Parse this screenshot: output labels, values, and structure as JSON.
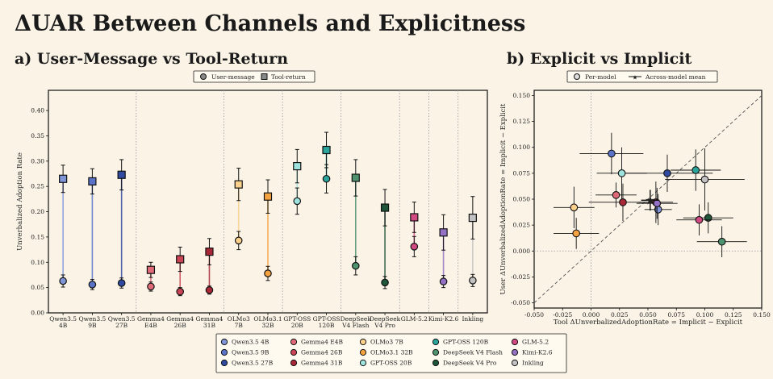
{
  "title": "ΔUAR Between Channels and Explicitness",
  "subtitles": {
    "a": "a) User-Message vs Tool-Return",
    "b": "b) Explicit vs Implicit"
  },
  "chart_data": [
    {
      "type": "scatter",
      "panel": "a",
      "ylabel": "Unverbalized Adoption Rate",
      "ylim": [
        0,
        0.44
      ],
      "yticks": [
        0.0,
        0.05,
        0.1,
        0.15,
        0.2,
        0.25,
        0.3,
        0.35,
        0.4
      ],
      "grid": false,
      "legend": {
        "position": "top-center",
        "entries": [
          "User-message",
          "Tool-return"
        ]
      },
      "groups_separated_by_dotted_lines": [
        [
          0,
          1,
          2
        ],
        [
          3,
          4,
          5
        ],
        [
          6,
          7
        ],
        [
          8,
          9
        ],
        [
          10,
          11
        ],
        [
          12
        ],
        [
          13
        ],
        [
          14
        ]
      ],
      "models": [
        {
          "label": [
            "Qwen3.5",
            "4B"
          ],
          "color": "#7f95d8",
          "user": 0.063,
          "user_err": 0.012,
          "tool": 0.265,
          "tool_err": 0.027
        },
        {
          "label": [
            "Qwen3.5",
            "9B"
          ],
          "color": "#5a73c9",
          "user": 0.056,
          "user_err": 0.01,
          "tool": 0.26,
          "tool_err": 0.025
        },
        {
          "label": [
            "Qwen3.5",
            "27B"
          ],
          "color": "#2f4aa0",
          "user": 0.059,
          "user_err": 0.01,
          "tool": 0.273,
          "tool_err": 0.03
        },
        {
          "label": [
            "Gemma4",
            "E4B"
          ],
          "color": "#e06b78",
          "user": 0.052,
          "user_err": 0.009,
          "tool": 0.085,
          "tool_err": 0.015
        },
        {
          "label": [
            "Gemma4",
            "26B"
          ],
          "color": "#c94455",
          "user": 0.042,
          "user_err": 0.008,
          "tool": 0.106,
          "tool_err": 0.024
        },
        {
          "label": [
            "Gemma4",
            "31B"
          ],
          "color": "#a82838",
          "user": 0.045,
          "user_err": 0.008,
          "tool": 0.121,
          "tool_err": 0.026
        },
        {
          "label": [
            "OLMo3",
            "7B"
          ],
          "color": "#fbd08c",
          "user": 0.143,
          "user_err": 0.018,
          "tool": 0.254,
          "tool_err": 0.032
        },
        {
          "label": [
            "OLMo3.1",
            "32B"
          ],
          "color": "#f4a340",
          "user": 0.078,
          "user_err": 0.014,
          "tool": 0.23,
          "tool_err": 0.033
        },
        {
          "label": [
            "GPT-OSS",
            "20B"
          ],
          "color": "#9fe3de",
          "user": 0.221,
          "user_err": 0.026,
          "tool": 0.29,
          "tool_err": 0.033
        },
        {
          "label": [
            "GPT-OSS",
            "120B"
          ],
          "color": "#2ba59c",
          "user": 0.265,
          "user_err": 0.028,
          "tool": 0.322,
          "tool_err": 0.035
        },
        {
          "label": [
            "DeepSeek",
            "V4 Flash"
          ],
          "color": "#4e9270",
          "user": 0.093,
          "user_err": 0.018,
          "tool": 0.267,
          "tool_err": 0.036
        },
        {
          "label": [
            "DeepSeek",
            "V4 Pro"
          ],
          "color": "#1f5538",
          "user": 0.06,
          "user_err": 0.012,
          "tool": 0.208,
          "tool_err": 0.036
        },
        {
          "label": [
            "GLM-5.2"
          ],
          "color": "#d24a82",
          "user": 0.131,
          "user_err": 0.02,
          "tool": 0.189,
          "tool_err": 0.03
        },
        {
          "label": [
            "Kimi-K2.6"
          ],
          "color": "#9471c4",
          "user": 0.062,
          "user_err": 0.012,
          "tool": 0.159,
          "tool_err": 0.035
        },
        {
          "label": [
            "Inkling"
          ],
          "color": "#c2c2c2",
          "user": 0.064,
          "user_err": 0.012,
          "tool": 0.188,
          "tool_err": 0.042
        }
      ]
    },
    {
      "type": "scatter",
      "panel": "b",
      "xlabel": "Tool ΔUnverbalizedAdoptionRate = Implicit − Explicit",
      "ylabel": "User ΔUnverbalizedAdoptionRate = Implicit − Explicit",
      "xlim": [
        -0.05,
        0.15
      ],
      "ylim": [
        -0.055,
        0.155
      ],
      "xticks": [
        -0.05,
        -0.025,
        0.0,
        0.025,
        0.05,
        0.075,
        0.1,
        0.125,
        0.15
      ],
      "yticks": [
        -0.05,
        -0.025,
        0.0,
        0.025,
        0.05,
        0.075,
        0.1,
        0.125,
        0.15
      ],
      "diagonal": "y = x (dashed)",
      "zero_lines": "dotted",
      "legend": {
        "position": "top-center",
        "entries": [
          "Per-model",
          "Across-model mean"
        ]
      },
      "points": [
        {
          "model": "Qwen3.5 4B",
          "x": 0.059,
          "y": 0.04,
          "xerr": 0.012,
          "yerr": 0.015
        },
        {
          "model": "Qwen3.5 9B",
          "x": 0.018,
          "y": 0.094,
          "xerr": 0.028,
          "yerr": 0.02
        },
        {
          "model": "Qwen3.5 27B",
          "x": 0.067,
          "y": 0.075,
          "xerr": 0.04,
          "yerr": 0.018
        },
        {
          "model": "Gemma4 E4B",
          "x": 0.022,
          "y": 0.054,
          "xerr": 0.018,
          "yerr": 0.012
        },
        {
          "model": "Gemma4 26B",
          "x": 0.057,
          "y": 0.047,
          "xerr": 0.015,
          "yerr": 0.02
        },
        {
          "model": "Gemma4 31B",
          "x": 0.028,
          "y": 0.047,
          "xerr": 0.03,
          "yerr": 0.018
        },
        {
          "model": "OLMo3 7B",
          "x": -0.015,
          "y": 0.042,
          "xerr": 0.018,
          "yerr": 0.02
        },
        {
          "model": "OLMo3.1 32B",
          "x": -0.013,
          "y": 0.017,
          "xerr": 0.02,
          "yerr": 0.015
        },
        {
          "model": "GPT-OSS 20B",
          "x": 0.027,
          "y": 0.075,
          "xerr": 0.022,
          "yerr": 0.025
        },
        {
          "model": "GPT-OSS 120B",
          "x": 0.092,
          "y": 0.078,
          "xerr": 0.022,
          "yerr": 0.02
        },
        {
          "model": "DeepSeek V4 Flash",
          "x": 0.115,
          "y": 0.009,
          "xerr": 0.022,
          "yerr": 0.015
        },
        {
          "model": "DeepSeek V4 Pro",
          "x": 0.103,
          "y": 0.032,
          "xerr": 0.022,
          "yerr": 0.015
        },
        {
          "model": "GLM-5.2",
          "x": 0.095,
          "y": 0.03,
          "xerr": 0.02,
          "yerr": 0.015
        },
        {
          "model": "Kimi-K2.6",
          "x": 0.058,
          "y": 0.046,
          "xerr": 0.018,
          "yerr": 0.015
        },
        {
          "model": "Inkling",
          "x": 0.1,
          "y": 0.069,
          "xerr": 0.035,
          "yerr": 0.03
        }
      ],
      "mean": {
        "x": 0.052,
        "y": 0.049,
        "xerr": 0.008,
        "yerr": 0.01
      }
    }
  ],
  "bottom_legend": [
    [
      "Qwen3.5 4B",
      "Gemma4 E4B",
      "OLMo3 7B",
      "GPT-OSS 120B",
      "GLM-5.2"
    ],
    [
      "Qwen3.5 9B",
      "Gemma4 26B",
      "OLMo3.1 32B",
      "DeepSeek V4 Flash",
      "Kimi-K2.6"
    ],
    [
      "Qwen3.5 27B",
      "Gemma4 31B",
      "GPT-OSS 20B",
      "DeepSeek V4 Pro",
      "Inkling"
    ]
  ]
}
